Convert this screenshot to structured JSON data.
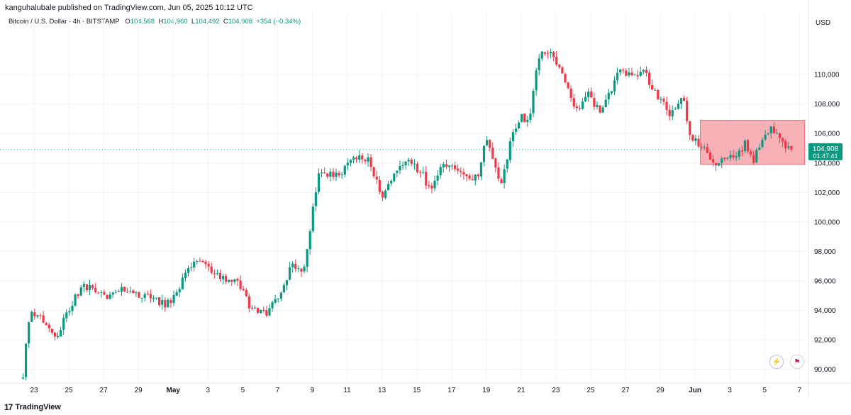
{
  "header": {
    "publisher": "kanguhalubale published on TradingView.com, Jun 05, 2025 10:12 UTC"
  },
  "legend": {
    "symbol": "Bitcoin / U.S. Dollar · 4h · BITSTAMP",
    "o_label": "O",
    "o_value": "104,568",
    "h_label": "H",
    "h_value": "104,960",
    "l_label": "L",
    "l_value": "104,492",
    "c_label": "C",
    "c_value": "104,908",
    "change": "+354 (+0.34%)"
  },
  "price_tag": {
    "price": "104,908",
    "countdown": "01:47:41"
  },
  "brand": {
    "icon": "17",
    "name": "TradingView"
  },
  "colors": {
    "up": "#089981",
    "down": "#f23645",
    "zone": "#f7a5aa",
    "grid": "#f0f3fa",
    "text": "#131722",
    "axis_text": "#131722"
  },
  "chart_data": {
    "type": "candlestick",
    "title": "Bitcoin / U.S. Dollar · 4h · BITSTAMP",
    "currency_label": "USD",
    "ylim": [
      89200,
      114200
    ],
    "y_ticks": [
      90000,
      92000,
      94000,
      96000,
      98000,
      100000,
      102000,
      104000,
      106000,
      108000,
      110000
    ],
    "y_tick_labels": [
      "90,000",
      "92,000",
      "94,000",
      "96,000",
      "98,000",
      "100,000",
      "102,000",
      "104,000",
      "106,000",
      "108,000",
      "110,000"
    ],
    "x_ticks": [
      {
        "label": "23",
        "day": 0,
        "bold": false
      },
      {
        "label": "25",
        "day": 2,
        "bold": false
      },
      {
        "label": "27",
        "day": 4,
        "bold": false
      },
      {
        "label": "29",
        "day": 6,
        "bold": false
      },
      {
        "label": "May",
        "day": 8,
        "bold": true
      },
      {
        "label": "3",
        "day": 10,
        "bold": false
      },
      {
        "label": "5",
        "day": 12,
        "bold": false
      },
      {
        "label": "7",
        "day": 14,
        "bold": false
      },
      {
        "label": "9",
        "day": 16,
        "bold": false
      },
      {
        "label": "11",
        "day": 18,
        "bold": false
      },
      {
        "label": "13",
        "day": 20,
        "bold": false
      },
      {
        "label": "15",
        "day": 22,
        "bold": false
      },
      {
        "label": "17",
        "day": 24,
        "bold": false
      },
      {
        "label": "19",
        "day": 26,
        "bold": false
      },
      {
        "label": "21",
        "day": 28,
        "bold": false
      },
      {
        "label": "23",
        "day": 30,
        "bold": false
      },
      {
        "label": "25",
        "day": 32,
        "bold": false
      },
      {
        "label": "27",
        "day": 34,
        "bold": false
      },
      {
        "label": "29",
        "day": 36,
        "bold": false
      },
      {
        "label": "Jun",
        "day": 38,
        "bold": true
      },
      {
        "label": "3",
        "day": 40,
        "bold": false
      },
      {
        "label": "5",
        "day": 42,
        "bold": false
      },
      {
        "label": "7",
        "day": 44,
        "bold": false
      }
    ],
    "anchors": [
      {
        "day": -0.8,
        "price": 89350
      },
      {
        "day": -0.6,
        "price": 89400
      },
      {
        "day": -0.4,
        "price": 92500
      },
      {
        "day": -0.2,
        "price": 93800
      },
      {
        "day": 0.3,
        "price": 93600
      },
      {
        "day": 1.3,
        "price": 92300
      },
      {
        "day": 2.0,
        "price": 94100
      },
      {
        "day": 2.8,
        "price": 95700
      },
      {
        "day": 4.2,
        "price": 94900
      },
      {
        "day": 5.2,
        "price": 95400
      },
      {
        "day": 6.2,
        "price": 95000
      },
      {
        "day": 7.6,
        "price": 94400
      },
      {
        "day": 8.3,
        "price": 95300
      },
      {
        "day": 8.8,
        "price": 96900
      },
      {
        "day": 9.8,
        "price": 97300
      },
      {
        "day": 10.6,
        "price": 96300
      },
      {
        "day": 11.8,
        "price": 95800
      },
      {
        "day": 12.5,
        "price": 94000
      },
      {
        "day": 13.4,
        "price": 93800
      },
      {
        "day": 14.2,
        "price": 95200
      },
      {
        "day": 14.8,
        "price": 97000
      },
      {
        "day": 15.5,
        "price": 96800
      },
      {
        "day": 15.9,
        "price": 99800
      },
      {
        "day": 16.4,
        "price": 103500
      },
      {
        "day": 17.5,
        "price": 103100
      },
      {
        "day": 18.3,
        "price": 104500
      },
      {
        "day": 19.3,
        "price": 104100
      },
      {
        "day": 20.0,
        "price": 101500
      },
      {
        "day": 20.8,
        "price": 103500
      },
      {
        "day": 21.4,
        "price": 104200
      },
      {
        "day": 22.3,
        "price": 103300
      },
      {
        "day": 22.8,
        "price": 102000
      },
      {
        "day": 23.4,
        "price": 103800
      },
      {
        "day": 24.2,
        "price": 103800
      },
      {
        "day": 25.0,
        "price": 102800
      },
      {
        "day": 25.6,
        "price": 103400
      },
      {
        "day": 26.0,
        "price": 105800
      },
      {
        "day": 26.5,
        "price": 103500
      },
      {
        "day": 26.9,
        "price": 102700
      },
      {
        "day": 27.5,
        "price": 106000
      },
      {
        "day": 28.0,
        "price": 107100
      },
      {
        "day": 28.5,
        "price": 106800
      },
      {
        "day": 28.8,
        "price": 109800
      },
      {
        "day": 29.2,
        "price": 111600
      },
      {
        "day": 29.9,
        "price": 111200
      },
      {
        "day": 30.5,
        "price": 109500
      },
      {
        "day": 31.2,
        "price": 107500
      },
      {
        "day": 31.8,
        "price": 108700
      },
      {
        "day": 32.5,
        "price": 107500
      },
      {
        "day": 33.0,
        "price": 108500
      },
      {
        "day": 33.6,
        "price": 110300
      },
      {
        "day": 34.4,
        "price": 109800
      },
      {
        "day": 35.0,
        "price": 110400
      },
      {
        "day": 35.6,
        "price": 108800
      },
      {
        "day": 36.2,
        "price": 108300
      },
      {
        "day": 36.6,
        "price": 107100
      },
      {
        "day": 37.3,
        "price": 108800
      },
      {
        "day": 37.7,
        "price": 105800
      },
      {
        "day": 38.6,
        "price": 105000
      },
      {
        "day": 39.2,
        "price": 103600
      },
      {
        "day": 39.7,
        "price": 104500
      },
      {
        "day": 40.3,
        "price": 104300
      },
      {
        "day": 40.9,
        "price": 105400
      },
      {
        "day": 41.3,
        "price": 104000
      },
      {
        "day": 41.8,
        "price": 105600
      },
      {
        "day": 42.3,
        "price": 106400
      },
      {
        "day": 43.0,
        "price": 105400
      },
      {
        "day": 43.6,
        "price": 104900
      }
    ],
    "sideways_zone": {
      "day_start": 38.3,
      "day_end": 44.3,
      "price_low": 103900,
      "price_high": 106900
    },
    "last_price": 104908
  }
}
